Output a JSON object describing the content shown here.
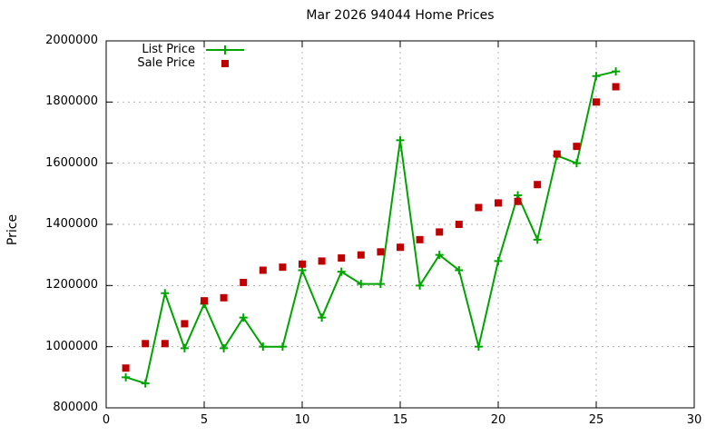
{
  "title": "Mar 2026 94044 Home Prices",
  "ylabel": "Price",
  "legend": {
    "items": [
      {
        "label": "List Price"
      },
      {
        "label": "Sale Price"
      }
    ]
  },
  "colors": {
    "list_price": "#00a400",
    "sale_price": "#c00000",
    "grid": "#b4b4b4",
    "axis": "#000000",
    "text": "#000000",
    "background": "#ffffff"
  },
  "chart_data": {
    "type": "line",
    "title": "Mar 2026 94044 Home Prices",
    "xlabel": "",
    "ylabel": "Price",
    "xlim": [
      0,
      30
    ],
    "ylim": [
      800000,
      2000000
    ],
    "x_ticks": [
      0,
      5,
      10,
      15,
      20,
      25,
      30
    ],
    "y_ticks": [
      800000,
      1000000,
      1200000,
      1400000,
      1600000,
      1800000,
      2000000
    ],
    "grid": true,
    "legend_position": "inside-top-left",
    "x": [
      1,
      2,
      3,
      4,
      5,
      6,
      7,
      8,
      9,
      10,
      11,
      12,
      13,
      14,
      15,
      16,
      17,
      18,
      19,
      20,
      21,
      22,
      23,
      24,
      25,
      26
    ],
    "series": [
      {
        "name": "List Price",
        "style": "line-with-plus-markers",
        "color": "#00a400",
        "values": [
          900000,
          880000,
          1175000,
          995000,
          1140000,
          995000,
          1095000,
          1000000,
          1000000,
          1250000,
          1095000,
          1245000,
          1205000,
          1205000,
          1675000,
          1200000,
          1300000,
          1250000,
          1000000,
          1280000,
          1495000,
          1350000,
          1625000,
          1600000,
          1885000,
          1900000
        ]
      },
      {
        "name": "Sale Price",
        "style": "square-markers",
        "color": "#c00000",
        "values": [
          930000,
          1010000,
          1010000,
          1075000,
          1150000,
          1160000,
          1210000,
          1250000,
          1260000,
          1270000,
          1280000,
          1290000,
          1300000,
          1310000,
          1325000,
          1350000,
          1375000,
          1400000,
          1455000,
          1470000,
          1475000,
          1530000,
          1630000,
          1655000,
          1800000,
          1850000
        ]
      }
    ]
  }
}
